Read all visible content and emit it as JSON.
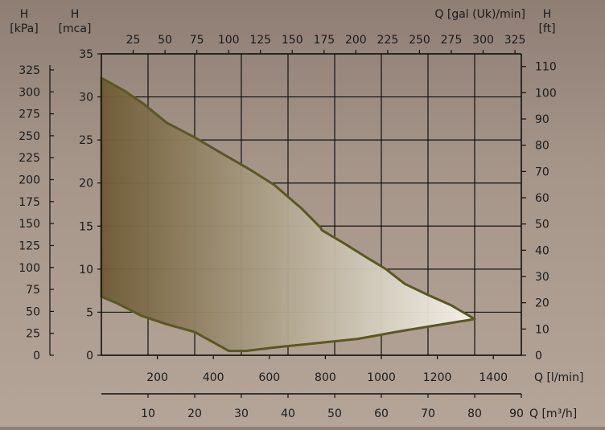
{
  "chart_data": {
    "type": "area",
    "title": "",
    "left_axes": [
      {
        "label_top": "H",
        "label_bottom": "[kPa]",
        "range": [
          0,
          343.3
        ],
        "ticks": [
          0,
          25,
          50,
          75,
          100,
          125,
          150,
          175,
          200,
          225,
          250,
          275,
          300,
          325
        ]
      },
      {
        "label_top": "H",
        "label_bottom": "[mca]",
        "range": [
          0,
          35
        ],
        "ticks": [
          0,
          5,
          10,
          15,
          20,
          25,
          30,
          35
        ]
      }
    ],
    "right_axis": {
      "label_top": "H",
      "label_bottom": "[ft]",
      "range": [
        0,
        114.8
      ],
      "ticks": [
        0,
        10,
        20,
        30,
        40,
        50,
        60,
        70,
        80,
        90,
        100,
        110
      ]
    },
    "top_axis": {
      "label": "Q [gal (Uk)/min]",
      "range": [
        0,
        330
      ],
      "ticks": [
        25,
        50,
        75,
        100,
        125,
        150,
        175,
        200,
        225,
        250,
        275,
        300,
        325
      ]
    },
    "bottom_axes": [
      {
        "label": "Q [l/min]",
        "range": [
          0,
          1500
        ],
        "ticks": [
          200,
          400,
          600,
          800,
          1000,
          1200,
          1400
        ]
      },
      {
        "label": "Q [m³/h]",
        "range": [
          0,
          90
        ],
        "ticks": [
          10,
          20,
          30,
          40,
          50,
          60,
          70,
          80,
          90
        ]
      }
    ],
    "x_grid_m3h": [
      0,
      10,
      20,
      30,
      40,
      50,
      60,
      70,
      80,
      90
    ],
    "y_grid_mca": [
      0,
      5,
      10,
      15,
      20,
      25,
      30,
      35
    ],
    "grid": true,
    "series": [
      {
        "name": "",
        "x_unit": "m³/h",
        "y_unit": "mca",
        "upper_curve": [
          [
            0,
            32.2
          ],
          [
            5,
            30.7
          ],
          [
            9,
            29.2
          ],
          [
            14,
            27
          ],
          [
            20,
            25.3
          ],
          [
            25,
            23.7
          ],
          [
            32,
            21.5
          ],
          [
            37,
            19.8
          ],
          [
            43,
            17
          ],
          [
            47,
            14.8
          ],
          [
            47.3,
            14.5
          ],
          [
            52,
            13
          ],
          [
            57,
            11.3
          ],
          [
            61,
            10
          ],
          [
            65,
            8.3
          ],
          [
            70,
            7
          ],
          [
            75,
            5.8
          ],
          [
            80,
            4.2
          ]
        ],
        "lower_curve": [
          [
            0,
            6.8
          ],
          [
            3.5,
            6
          ],
          [
            8.5,
            4.6
          ],
          [
            14,
            3.6
          ],
          [
            20,
            2.7
          ],
          [
            27.3,
            0.5
          ],
          [
            31,
            0.5
          ],
          [
            37,
            0.9
          ],
          [
            46,
            1.4
          ],
          [
            55,
            1.9
          ],
          [
            63,
            2.7
          ],
          [
            72,
            3.5
          ],
          [
            80,
            4.2
          ]
        ],
        "colors": {
          "dark": "#6e5a34",
          "light": "#f8f6ef",
          "edge": "#5b5724"
        }
      }
    ]
  }
}
